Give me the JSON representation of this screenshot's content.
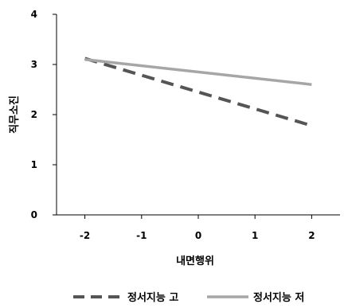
{
  "chart_data": {
    "type": "line",
    "xlabel": "내면행위",
    "ylabel": "직무소진",
    "x": [
      -2,
      2
    ],
    "xticks": [
      -2,
      -1,
      0,
      1,
      2
    ],
    "xtick_labels": [
      "-2",
      "-1",
      "0",
      "1",
      "2"
    ],
    "xlim": [
      -2.5,
      2.5
    ],
    "yticks": [
      0,
      1,
      2,
      3,
      4
    ],
    "ytick_labels": [
      "0",
      "1",
      "2",
      "3",
      "4"
    ],
    "ylim": [
      0,
      4
    ],
    "grid": false,
    "legend": "bottom",
    "series": [
      {
        "name": "정서지능 고",
        "values": [
          3.12,
          1.78
        ],
        "color": "#555555",
        "dash": "dashed"
      },
      {
        "name": "정서지능 저",
        "values": [
          3.1,
          2.6
        ],
        "color": "#a6a6a6",
        "dash": "solid"
      }
    ]
  }
}
